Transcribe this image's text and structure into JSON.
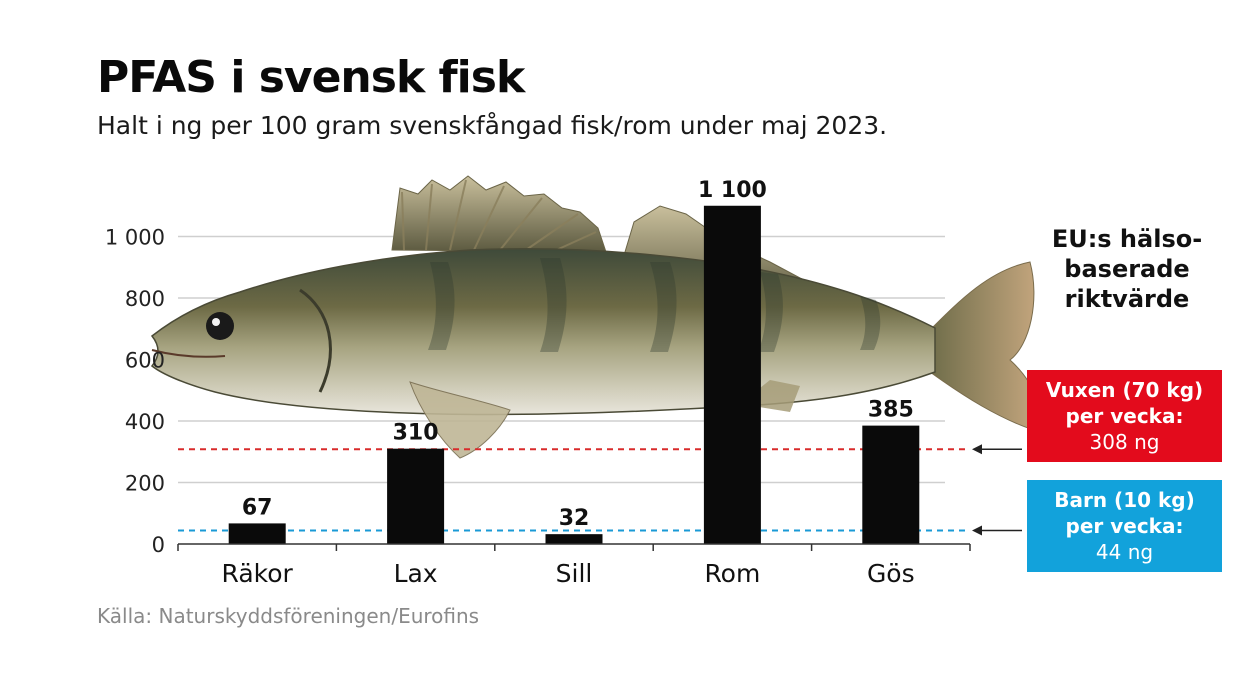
{
  "header": {
    "title": "PFAS i svensk fisk",
    "subtitle": "Halt i ng per 100 gram svenskfångad fisk/rom under maj 2023."
  },
  "source": "Källa: Naturskyddsföreningen/Eurofins",
  "legend": {
    "heading_lines": [
      "EU:s hälso-",
      "baserade",
      "riktvärde"
    ],
    "adult": {
      "line1": "Vuxen (70 kg)",
      "line2": "per vecka:",
      "line3": "308 ng",
      "color": "#e30b1c"
    },
    "child": {
      "line1": "Barn (10 kg)",
      "line2": "per vecka:",
      "line3": "44 ng",
      "color": "#12a2db"
    }
  },
  "colors": {
    "bar": "#0a0a0a",
    "grid": "#cfcfcf",
    "adult_line": "#d92b2b",
    "child_line": "#1a9ad6"
  },
  "illustration": {
    "icon": "zander-fish-photo"
  },
  "chart_data": {
    "type": "bar",
    "title": "PFAS i svensk fisk",
    "subtitle": "Halt i ng per 100 gram svenskfångad fisk/rom under maj 2023.",
    "categories": [
      "Räkor",
      "Lax",
      "Sill",
      "Rom",
      "Gös"
    ],
    "values": [
      67,
      310,
      32,
      1100,
      385
    ],
    "value_labels": [
      "67",
      "310",
      "32",
      "1 100",
      "385"
    ],
    "ylim": [
      0,
      1100
    ],
    "yticks": [
      0,
      200,
      400,
      600,
      800,
      1000
    ],
    "ytick_labels": [
      "0",
      "200",
      "400",
      "600",
      "800",
      "1 000"
    ],
    "grid": true,
    "reference_lines": [
      {
        "label": "Vuxen (70 kg) per vecka: 308 ng",
        "value": 308
      },
      {
        "label": "Barn (10 kg) per vecka: 44 ng",
        "value": 44
      }
    ]
  }
}
